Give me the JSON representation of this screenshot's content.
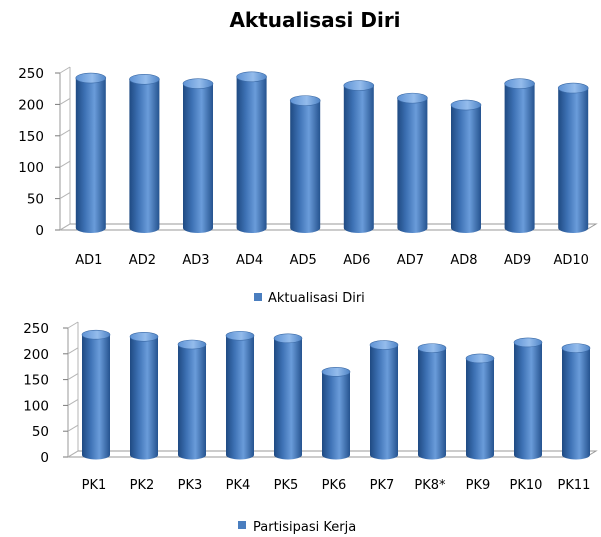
{
  "chart_data": [
    {
      "type": "bar",
      "title": "Aktualisasi Diri",
      "categories": [
        "AD1",
        "AD2",
        "AD3",
        "AD4",
        "AD5",
        "AD6",
        "AD7",
        "AD8",
        "AD9",
        "AD10"
      ],
      "series": [
        {
          "name": "Aktualisasi Diri",
          "values": [
            242,
            240,
            233,
            244,
            206,
            230,
            210,
            199,
            233,
            226
          ]
        }
      ],
      "yticks": [
        "0",
        "50",
        "100",
        "150",
        "200",
        "250"
      ],
      "ylim": [
        0,
        250
      ],
      "grid": false,
      "legend_position": "bottom",
      "color": "#4a7ebf"
    },
    {
      "type": "bar",
      "title": "",
      "categories": [
        "PK1",
        "PK2",
        "PK3",
        "PK4",
        "PK5",
        "PK6",
        "PK7",
        "PK8*",
        "PK9",
        "PK10",
        "PK11"
      ],
      "series": [
        {
          "name": "Partisipasi Kerja",
          "values": [
            237,
            233,
            218,
            235,
            230,
            165,
            217,
            211,
            191,
            222,
            211
          ]
        }
      ],
      "yticks": [
        "0",
        "50",
        "100",
        "150",
        "200",
        "250"
      ],
      "ylim": [
        0,
        250
      ],
      "grid": false,
      "legend_position": "bottom",
      "color": "#4a7ebf"
    }
  ]
}
